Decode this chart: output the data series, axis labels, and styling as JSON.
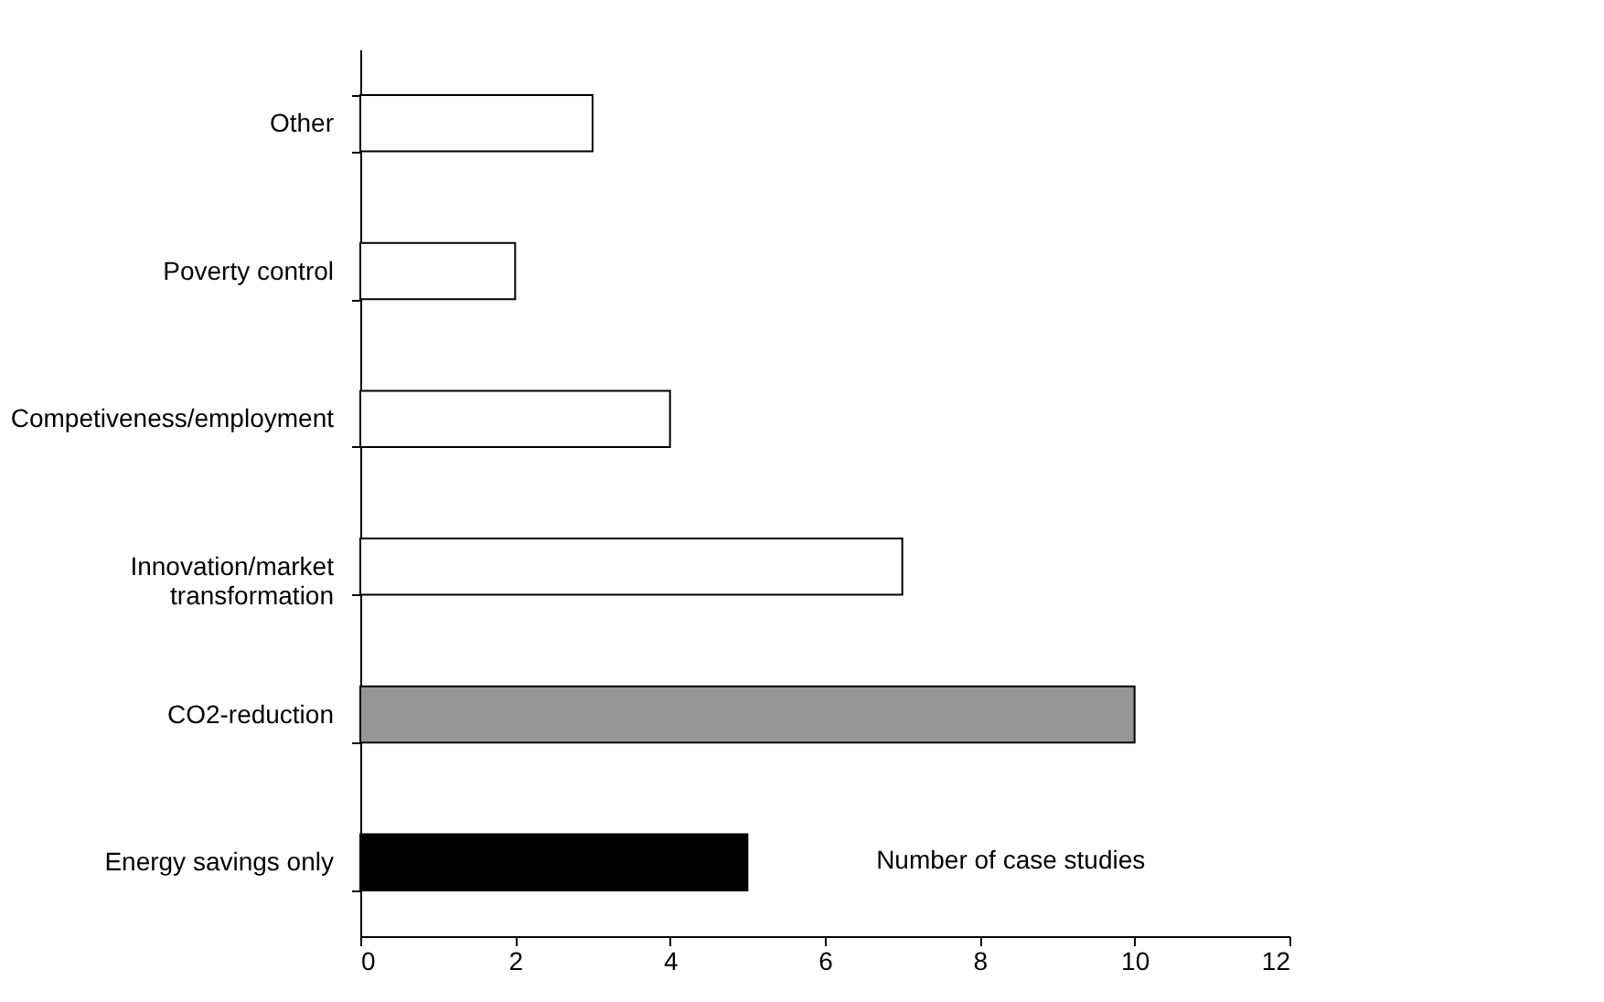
{
  "chart_data": {
    "type": "bar",
    "orientation": "horizontal",
    "categories": [
      "Other",
      "Poverty control",
      "Competiveness/employment",
      "Innovation/market\ntransformation",
      "CO2-reduction",
      "Energy savings only"
    ],
    "values": [
      3,
      2,
      4,
      7,
      10,
      5
    ],
    "colors": [
      "#ffffff",
      "#ffffff",
      "#ffffff",
      "#ffffff",
      "#969696",
      "#000000"
    ],
    "xlabel": "Number of case studies",
    "xlim": [
      0,
      12
    ],
    "xticks": [
      0,
      2,
      4,
      6,
      8,
      10,
      12
    ],
    "grid": false
  }
}
